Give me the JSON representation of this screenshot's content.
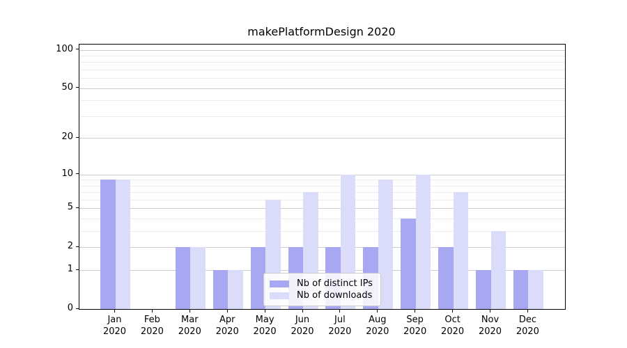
{
  "title": "makePlatformDesign 2020",
  "chart_data": {
    "type": "bar",
    "title": "makePlatformDesign 2020",
    "categories": [
      "Jan 2020",
      "Feb 2020",
      "Mar 2020",
      "Apr 2020",
      "May 2020",
      "Jun 2020",
      "Jul 2020",
      "Aug 2020",
      "Sep 2020",
      "Oct 2020",
      "Nov 2020",
      "Dec 2020"
    ],
    "series": [
      {
        "name": "Nb of distinct IPs",
        "color": "#a7a7f2",
        "values": [
          9,
          0,
          2,
          1,
          2,
          2,
          2,
          2,
          4,
          2,
          1,
          1
        ]
      },
      {
        "name": "Nb of downloads",
        "color": "#dbdbfa",
        "values": [
          9,
          0,
          2,
          1,
          6,
          7,
          10,
          9,
          10,
          7,
          3,
          1
        ]
      }
    ],
    "xlabel": "",
    "ylabel": "",
    "yscale": "log1p",
    "ylim": [
      0,
      110
    ],
    "yticks": [
      0,
      1,
      2,
      5,
      10,
      20,
      50,
      100
    ],
    "minor_gridlines": [
      3,
      4,
      6,
      7,
      8,
      9,
      30,
      40,
      60,
      70,
      80,
      90
    ],
    "grid": true,
    "legend_position": "inside-bottom-center"
  },
  "colors": {
    "axis": "#000000",
    "text": "#000000",
    "grid_major": "#cccccc",
    "grid_minor": "#ececec",
    "legend_border": "#cccccc",
    "background": "#ffffff"
  }
}
